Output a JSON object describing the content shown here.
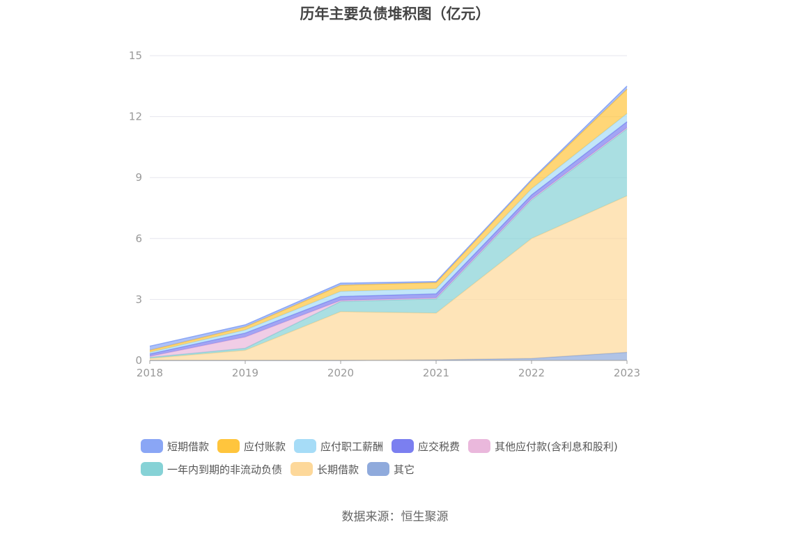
{
  "chart_data": {
    "type": "area",
    "stacked": true,
    "title": "历年主要负债堆积图（亿元）",
    "x": [
      "2018",
      "2019",
      "2020",
      "2021",
      "2022",
      "2023"
    ],
    "ylim": [
      0,
      15
    ],
    "yticks": [
      "0",
      "3",
      "6",
      "9",
      "12",
      "15"
    ],
    "grid": true,
    "legend_position": "bottom",
    "series": [
      {
        "name": "其它",
        "color": "#8faadc",
        "values": [
          0.0,
          0.0,
          0.0,
          0.03,
          0.1,
          0.4
        ]
      },
      {
        "name": "长期借款",
        "color": "#fdd89a",
        "values": [
          0.1,
          0.5,
          2.4,
          2.3,
          5.9,
          7.7
        ]
      },
      {
        "name": "一年内到期的非流动负债",
        "color": "#86d2d6",
        "values": [
          0.05,
          0.1,
          0.5,
          0.7,
          1.9,
          3.3
        ]
      },
      {
        "name": "其他应付款(含利息和股利)",
        "color": "#eab8dc",
        "values": [
          0.05,
          0.55,
          0.05,
          0.05,
          0.05,
          0.05
        ]
      },
      {
        "name": "应交税费",
        "color": "#7b7ff0",
        "values": [
          0.12,
          0.2,
          0.2,
          0.2,
          0.2,
          0.3
        ]
      },
      {
        "name": "应付职工薪酬",
        "color": "#a6dcf7",
        "values": [
          0.08,
          0.15,
          0.25,
          0.25,
          0.3,
          0.4
        ]
      },
      {
        "name": "应付账款",
        "color": "#ffc53d",
        "values": [
          0.1,
          0.15,
          0.3,
          0.3,
          0.4,
          1.2
        ]
      },
      {
        "name": "短期借款",
        "color": "#8aa6f5",
        "values": [
          0.2,
          0.1,
          0.1,
          0.05,
          0.05,
          0.15
        ]
      }
    ]
  },
  "legend": {
    "row1": [
      "短期借款",
      "应付账款",
      "应付职工薪酬",
      "应交税费",
      "其他应付款(含利息和股利)"
    ],
    "row2": [
      "一年内到期的非流动负债",
      "长期借款",
      "其它"
    ]
  },
  "source": "数据来源：恒生聚源"
}
